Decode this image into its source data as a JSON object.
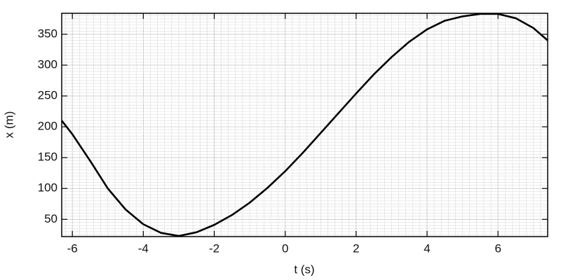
{
  "chart_data": {
    "type": "line",
    "x_label": "t (s)",
    "y_label": "x (m)",
    "x": [
      -6.3,
      -6,
      -5.5,
      -5,
      -4.5,
      -4,
      -3.5,
      -3,
      -2.5,
      -2,
      -1.5,
      -1,
      -0.5,
      0,
      0.5,
      1,
      1.5,
      2,
      2.5,
      3,
      3.5,
      4,
      4.5,
      5,
      5.5,
      6,
      6.5,
      7,
      7.4
    ],
    "series": [
      {
        "color": "#000000",
        "values": [
          210,
          188,
          145,
          100,
          66,
          42,
          28,
          23,
          29,
          41,
          57,
          77,
          101,
          128,
          158,
          190,
          222,
          254,
          285,
          313,
          338,
          358,
          372,
          379,
          383,
          383,
          376,
          360,
          340
        ]
      }
    ],
    "xlim": [
      -6.3,
      7.4
    ],
    "xticks": [
      -6,
      -4,
      -2,
      0,
      2,
      4,
      6
    ],
    "ylim": [
      22,
      384
    ],
    "yticks": [
      50,
      100,
      150,
      200,
      250,
      300,
      350
    ],
    "grid": true
  }
}
